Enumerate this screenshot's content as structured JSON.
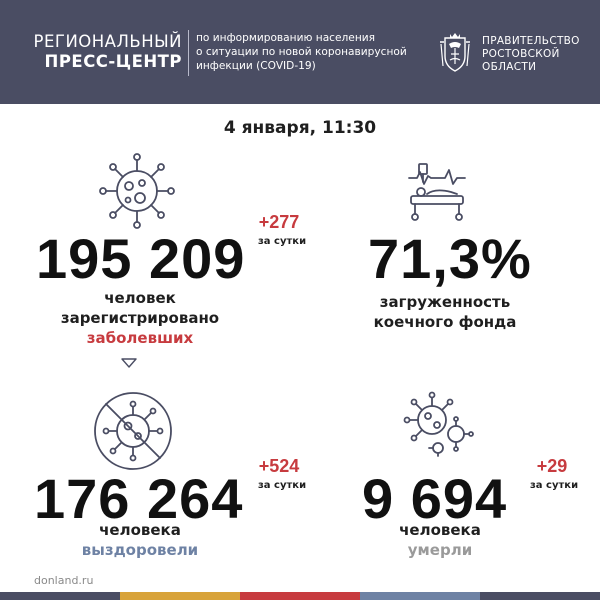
{
  "header": {
    "title_line1": "РЕГИОНАЛЬНЫЙ",
    "title_line2": "ПРЕСС-ЦЕНТР",
    "desc_line1": "по информированию населения",
    "desc_line2": "о ситуации по новой коронавирусной",
    "desc_line3": "инфекции (COVID-19)",
    "gov_line1": "ПРАВИТЕЛЬСТВО",
    "gov_line2": "РОСТОВСКОЙ",
    "gov_line3": "ОБЛАСТИ"
  },
  "date": "4 января, 11:30",
  "stats": {
    "cases": {
      "value": "195 209",
      "delta": "+277",
      "per": "за сутки",
      "line1": "человек",
      "line2": "зарегистрировано",
      "line3": "заболевших"
    },
    "beds": {
      "value": "71,3%",
      "line1": "загруженность",
      "line2": "коечного фонда"
    },
    "recovered": {
      "value": "176 264",
      "delta": "+524",
      "per": "за сутки",
      "line1": "человека",
      "line2": "выздоровели"
    },
    "deaths": {
      "value": "9 694",
      "delta": "+29",
      "per": "за сутки",
      "line1": "человека",
      "line2": "умерли"
    }
  },
  "footer": {
    "site": "donland.ru",
    "stripe_colors": [
      "#4a4d63",
      "#d8a33a",
      "#c73b3f",
      "#6e82a4",
      "#4a4d63"
    ]
  },
  "colors": {
    "accent_red": "#c73b3f",
    "accent_blue": "#6e82a4",
    "header_bg": "#4a4d63"
  },
  "icons": [
    "virus-icon",
    "hospital-bed-icon",
    "crossed-virus-icon",
    "virus-cluster-icon",
    "coat-of-arms-icon",
    "down-arrow-icon"
  ]
}
